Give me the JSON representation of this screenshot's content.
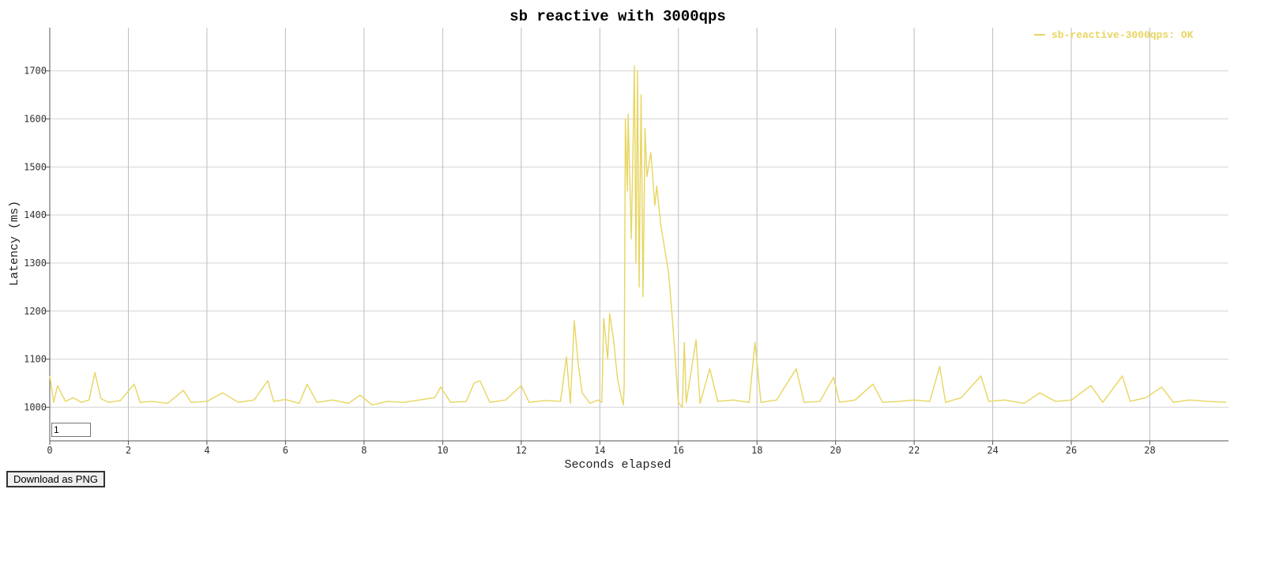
{
  "button": {
    "download_label": "Download as PNG"
  },
  "smoothing": {
    "value": "1"
  },
  "chart_data": {
    "type": "line",
    "title": "sb reactive with 3000qps",
    "xlabel": "Seconds elapsed",
    "ylabel": "Latency (ms)",
    "xlim": [
      0,
      30
    ],
    "ylim": [
      930,
      1790
    ],
    "x_ticks": [
      0,
      2,
      4,
      6,
      8,
      10,
      12,
      14,
      16,
      18,
      20,
      22,
      24,
      26,
      28
    ],
    "y_ticks": [
      1000,
      1100,
      1200,
      1300,
      1400,
      1500,
      1600,
      1700
    ],
    "grid": true,
    "legend_position": "top-right",
    "color": "#e8d55f",
    "series": [
      {
        "name": "sb-reactive-3000qps: OK",
        "points": [
          [
            0,
            1065
          ],
          [
            0.1,
            1010
          ],
          [
            0.2,
            1045
          ],
          [
            0.4,
            1012
          ],
          [
            0.6,
            1020
          ],
          [
            0.8,
            1010
          ],
          [
            1.0,
            1015
          ],
          [
            1.15,
            1072
          ],
          [
            1.3,
            1018
          ],
          [
            1.5,
            1010
          ],
          [
            1.8,
            1014
          ],
          [
            2.15,
            1048
          ],
          [
            2.3,
            1010
          ],
          [
            2.6,
            1012
          ],
          [
            3.0,
            1008
          ],
          [
            3.4,
            1035
          ],
          [
            3.6,
            1010
          ],
          [
            4.0,
            1012
          ],
          [
            4.4,
            1030
          ],
          [
            4.8,
            1010
          ],
          [
            5.2,
            1015
          ],
          [
            5.55,
            1055
          ],
          [
            5.7,
            1012
          ],
          [
            6.0,
            1016
          ],
          [
            6.35,
            1008
          ],
          [
            6.55,
            1048
          ],
          [
            6.8,
            1010
          ],
          [
            7.2,
            1015
          ],
          [
            7.6,
            1008
          ],
          [
            7.9,
            1025
          ],
          [
            8.2,
            1005
          ],
          [
            8.6,
            1012
          ],
          [
            9.0,
            1010
          ],
          [
            9.4,
            1015
          ],
          [
            9.8,
            1020
          ],
          [
            9.95,
            1042
          ],
          [
            10.2,
            1010
          ],
          [
            10.6,
            1012
          ],
          [
            10.8,
            1050
          ],
          [
            10.95,
            1055
          ],
          [
            11.2,
            1010
          ],
          [
            11.6,
            1015
          ],
          [
            12.0,
            1045
          ],
          [
            12.2,
            1010
          ],
          [
            12.6,
            1014
          ],
          [
            13.0,
            1012
          ],
          [
            13.15,
            1105
          ],
          [
            13.25,
            1008
          ],
          [
            13.35,
            1180
          ],
          [
            13.45,
            1090
          ],
          [
            13.55,
            1030
          ],
          [
            13.75,
            1008
          ],
          [
            13.95,
            1015
          ],
          [
            14.05,
            1010
          ],
          [
            14.1,
            1185
          ],
          [
            14.2,
            1100
          ],
          [
            14.25,
            1195
          ],
          [
            14.35,
            1140
          ],
          [
            14.45,
            1060
          ],
          [
            14.55,
            1020
          ],
          [
            14.6,
            1005
          ],
          [
            14.62,
            1045
          ],
          [
            14.65,
            1600
          ],
          [
            14.7,
            1450
          ],
          [
            14.72,
            1610
          ],
          [
            14.8,
            1350
          ],
          [
            14.85,
            1560
          ],
          [
            14.88,
            1710
          ],
          [
            14.92,
            1300
          ],
          [
            14.96,
            1700
          ],
          [
            15.0,
            1250
          ],
          [
            15.05,
            1650
          ],
          [
            15.1,
            1230
          ],
          [
            15.15,
            1580
          ],
          [
            15.2,
            1480
          ],
          [
            15.3,
            1530
          ],
          [
            15.4,
            1420
          ],
          [
            15.45,
            1460
          ],
          [
            15.55,
            1380
          ],
          [
            15.65,
            1330
          ],
          [
            15.75,
            1280
          ],
          [
            15.85,
            1180
          ],
          [
            16.0,
            1010
          ],
          [
            16.1,
            1000
          ],
          [
            16.15,
            1135
          ],
          [
            16.2,
            1010
          ],
          [
            16.45,
            1140
          ],
          [
            16.55,
            1008
          ],
          [
            16.8,
            1080
          ],
          [
            17.0,
            1012
          ],
          [
            17.4,
            1015
          ],
          [
            17.8,
            1010
          ],
          [
            17.95,
            1135
          ],
          [
            18.1,
            1010
          ],
          [
            18.5,
            1015
          ],
          [
            19.0,
            1080
          ],
          [
            19.2,
            1010
          ],
          [
            19.6,
            1012
          ],
          [
            19.95,
            1062
          ],
          [
            20.1,
            1010
          ],
          [
            20.5,
            1015
          ],
          [
            20.95,
            1048
          ],
          [
            21.2,
            1010
          ],
          [
            21.6,
            1012
          ],
          [
            22.0,
            1015
          ],
          [
            22.4,
            1012
          ],
          [
            22.65,
            1085
          ],
          [
            22.8,
            1010
          ],
          [
            23.2,
            1020
          ],
          [
            23.7,
            1065
          ],
          [
            23.9,
            1012
          ],
          [
            24.3,
            1015
          ],
          [
            24.8,
            1008
          ],
          [
            25.2,
            1030
          ],
          [
            25.6,
            1012
          ],
          [
            26.0,
            1015
          ],
          [
            26.5,
            1045
          ],
          [
            26.8,
            1010
          ],
          [
            27.3,
            1065
          ],
          [
            27.5,
            1012
          ],
          [
            27.9,
            1020
          ],
          [
            28.3,
            1042
          ],
          [
            28.6,
            1010
          ],
          [
            29.0,
            1015
          ],
          [
            29.5,
            1012
          ],
          [
            29.95,
            1010
          ]
        ]
      }
    ]
  }
}
